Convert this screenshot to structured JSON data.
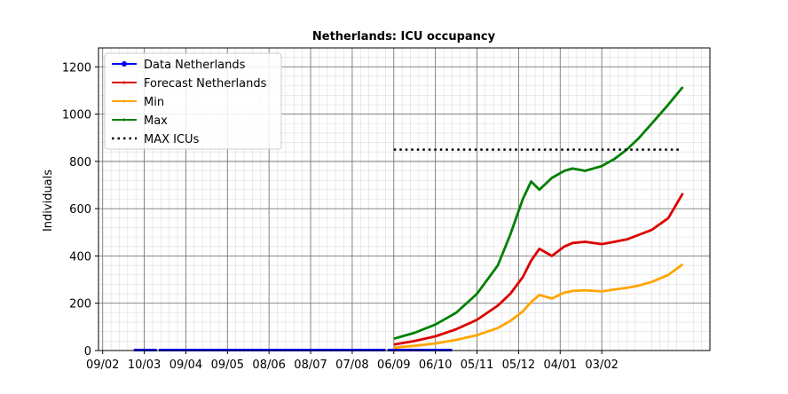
{
  "chart_data": {
    "type": "line",
    "title": "Netherlands: ICU occupancy",
    "xlabel": "",
    "ylabel": "Individuals",
    "ylim": [
      0,
      1280
    ],
    "yticks": [
      0,
      200,
      400,
      600,
      800,
      1000,
      1200
    ],
    "xtick_labels": [
      "09/02",
      "10/03",
      "09/04",
      "09/05",
      "08/06",
      "08/07",
      "07/08",
      "06/09",
      "06/10",
      "05/11",
      "05/12",
      "04/01",
      "03/02"
    ],
    "grid": true,
    "legend_position": "top-left",
    "series": [
      {
        "name": "Data Netherlands",
        "color": "#0000ff",
        "x": [
          0.75,
          1.3,
          1.3,
          1.35,
          1.35,
          6.8,
          6.8,
          6.85,
          6.85,
          8.4
        ],
        "values": [
          2,
          2,
          null,
          null,
          2,
          2,
          null,
          null,
          2,
          2
        ]
      },
      {
        "name": "Forecast Netherlands",
        "color": "#dd0000",
        "x": [
          7.0,
          7.5,
          8.0,
          8.5,
          9.0,
          9.5,
          9.8,
          10.1,
          10.3,
          10.5,
          10.8,
          11.1,
          11.3,
          11.6,
          12.0,
          12.3,
          12.6,
          12.9,
          13.2,
          13.6,
          13.95
        ],
        "values": [
          25,
          40,
          60,
          90,
          130,
          190,
          240,
          310,
          380,
          430,
          400,
          440,
          455,
          460,
          450,
          460,
          470,
          490,
          510,
          560,
          665
        ]
      },
      {
        "name": "Min",
        "color": "#ffa500",
        "x": [
          7.0,
          7.5,
          8.0,
          8.5,
          9.0,
          9.5,
          9.8,
          10.1,
          10.3,
          10.5,
          10.8,
          11.1,
          11.3,
          11.6,
          12.0,
          12.3,
          12.6,
          12.9,
          13.2,
          13.6,
          13.95
        ],
        "values": [
          12,
          20,
          30,
          45,
          65,
          95,
          125,
          165,
          205,
          235,
          220,
          245,
          252,
          255,
          250,
          258,
          265,
          275,
          290,
          320,
          365
        ]
      },
      {
        "name": "Max",
        "color": "#008000",
        "x": [
          7.0,
          7.5,
          8.0,
          8.5,
          9.0,
          9.5,
          9.8,
          10.1,
          10.3,
          10.5,
          10.8,
          11.1,
          11.3,
          11.6,
          12.0,
          12.3,
          12.6,
          12.9,
          13.2,
          13.6,
          13.95
        ],
        "values": [
          50,
          75,
          110,
          160,
          240,
          360,
          490,
          640,
          715,
          680,
          730,
          760,
          770,
          760,
          780,
          810,
          850,
          900,
          960,
          1040,
          1115
        ]
      },
      {
        "name": "MAX ICUs",
        "color": "#000000",
        "x": [
          7.0,
          13.9
        ],
        "values": [
          850,
          850
        ]
      }
    ]
  }
}
